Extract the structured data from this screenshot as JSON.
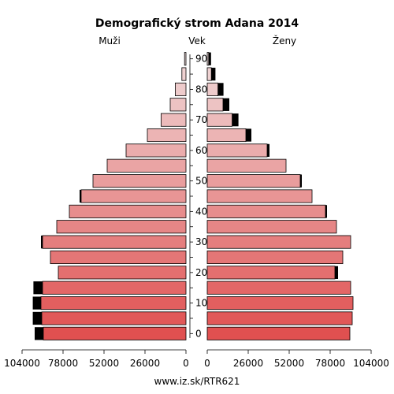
{
  "chart_data": {
    "type": "bar",
    "title": "Demografický strom Adana 2014",
    "left_label": "Muži",
    "center_label": "Vek",
    "right_label": "Ženy",
    "source": "www.iz.sk/RTR621",
    "age_ticks": [
      "0",
      "10",
      "20",
      "30",
      "40",
      "50",
      "60",
      "70",
      "80",
      "90"
    ],
    "x_ticks_left": [
      "104000",
      "78000",
      "52000",
      "26000",
      "0"
    ],
    "x_ticks_right": [
      "0",
      "26000",
      "52000",
      "78000",
      "104000"
    ],
    "xlim": [
      0,
      104000
    ],
    "categories": [
      "0-4",
      "5-9",
      "10-14",
      "15-19",
      "20-24",
      "25-29",
      "30-34",
      "35-39",
      "40-44",
      "45-49",
      "50-54",
      "55-59",
      "60-64",
      "65-69",
      "70-74",
      "75-79",
      "80-84",
      "85-89",
      "90-94"
    ],
    "series": [
      {
        "name": "Muži",
        "values": [
          90500,
          91500,
          92000,
          91000,
          81000,
          86000,
          91000,
          82000,
          74000,
          66500,
          59000,
          50000,
          38000,
          24500,
          15800,
          10000,
          6800,
          2600,
          900
        ],
        "excess": [
          5500,
          5700,
          5200,
          5800,
          0,
          0,
          1000,
          0,
          0,
          1000,
          0,
          0,
          0,
          0,
          0,
          0,
          0,
          0,
          0
        ]
      },
      {
        "name": "Ženy",
        "values": [
          90500,
          92000,
          92500,
          91000,
          81000,
          86000,
          91000,
          82000,
          75000,
          66500,
          59000,
          50000,
          38000,
          24500,
          15800,
          10000,
          6800,
          2600,
          900
        ],
        "excess": [
          0,
          0,
          0,
          0,
          2000,
          0,
          0,
          0,
          1000,
          0,
          1000,
          0,
          1500,
          3500,
          4000,
          4000,
          3500,
          2600,
          1500
        ]
      }
    ]
  }
}
